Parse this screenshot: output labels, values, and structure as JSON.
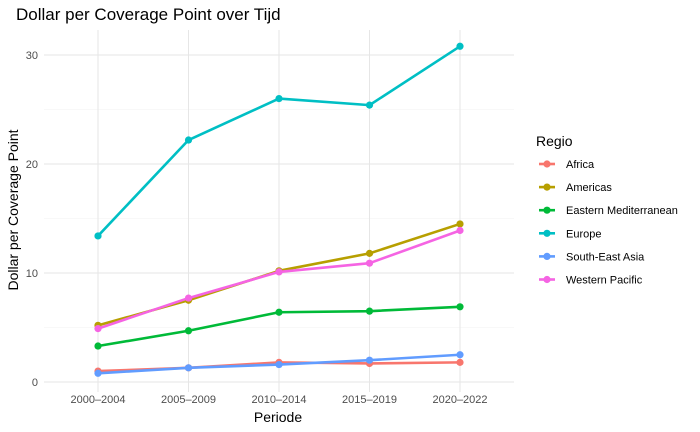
{
  "chart_data": {
    "type": "line",
    "title": "Dollar per Coverage Point over Tijd",
    "xlabel": "Periode",
    "ylabel": "Dollar per Coverage Point",
    "categories": [
      "2000–2004",
      "2005–2009",
      "2010–2014",
      "2015–2019",
      "2020–2022"
    ],
    "ylim": [
      0,
      32
    ],
    "yticks": [
      0,
      10,
      20,
      30
    ],
    "grid": true,
    "legend": {
      "title": "Regio",
      "placement": "right"
    },
    "series": [
      {
        "name": "Africa",
        "color": "#F8766D",
        "values": [
          1.0,
          1.3,
          1.8,
          1.7,
          1.8
        ]
      },
      {
        "name": "Americas",
        "color": "#B79F00",
        "values": [
          5.2,
          7.5,
          10.2,
          11.8,
          14.5
        ]
      },
      {
        "name": "Eastern Mediterranean",
        "color": "#00BA38",
        "values": [
          3.3,
          4.7,
          6.4,
          6.5,
          6.9
        ]
      },
      {
        "name": "Europe",
        "color": "#00BFC4",
        "values": [
          13.4,
          22.2,
          26.0,
          25.4,
          30.8
        ]
      },
      {
        "name": "South-East Asia",
        "color": "#619CFF",
        "values": [
          0.8,
          1.3,
          1.6,
          2.0,
          2.5
        ]
      },
      {
        "name": "Western Pacific",
        "color": "#F564E3",
        "values": [
          4.9,
          7.7,
          10.1,
          10.9,
          13.9
        ]
      }
    ]
  }
}
